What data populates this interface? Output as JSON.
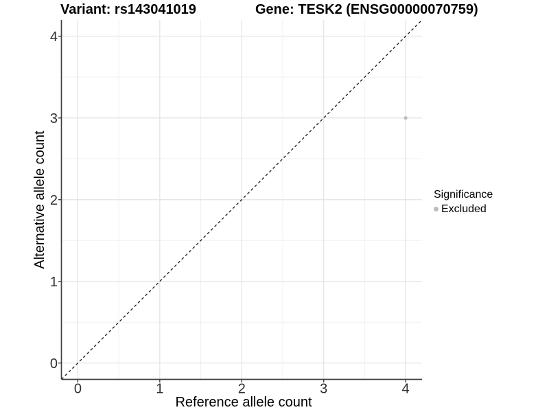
{
  "titles": {
    "variant": "Variant: rs143041019",
    "gene": "Gene: TESK2 (ENSG00000070759)"
  },
  "axes": {
    "x_label": "Reference allele count",
    "y_label": "Alternative allele count"
  },
  "legend": {
    "title": "Significance",
    "entries": [
      {
        "label": "Excluded",
        "color": "#bdbdbd"
      }
    ]
  },
  "colors": {
    "background": "#ffffff",
    "axis_line": "#3f3f3f",
    "tick_label": "#303030",
    "grid_major": "#e3e3e3",
    "grid_minor": "#f0f0f0",
    "reference_line": "#1a1a1a",
    "point": "#bdbdbd"
  },
  "chart_data": {
    "type": "scatter",
    "title": "Variant: rs143041019 | Gene: TESK2 (ENSG00000070759)",
    "xlabel": "Reference allele count",
    "ylabel": "Alternative allele count",
    "xlim": [
      -0.2,
      4.2
    ],
    "ylim": [
      -0.2,
      4.2
    ],
    "x_ticks": [
      0,
      1,
      2,
      3,
      4
    ],
    "y_ticks": [
      0,
      1,
      2,
      3,
      4
    ],
    "grid": "major+minor",
    "legend_position": "right",
    "legend_title": "Significance",
    "series": [
      {
        "name": "Excluded",
        "color": "#bdbdbd",
        "points": [
          {
            "x": 4,
            "y": 3
          }
        ]
      }
    ],
    "reference_line": {
      "type": "identity y=x",
      "style": "dashed",
      "color": "#1a1a1a",
      "from": [
        -0.2,
        -0.2
      ],
      "to": [
        4.2,
        4.2
      ]
    }
  }
}
